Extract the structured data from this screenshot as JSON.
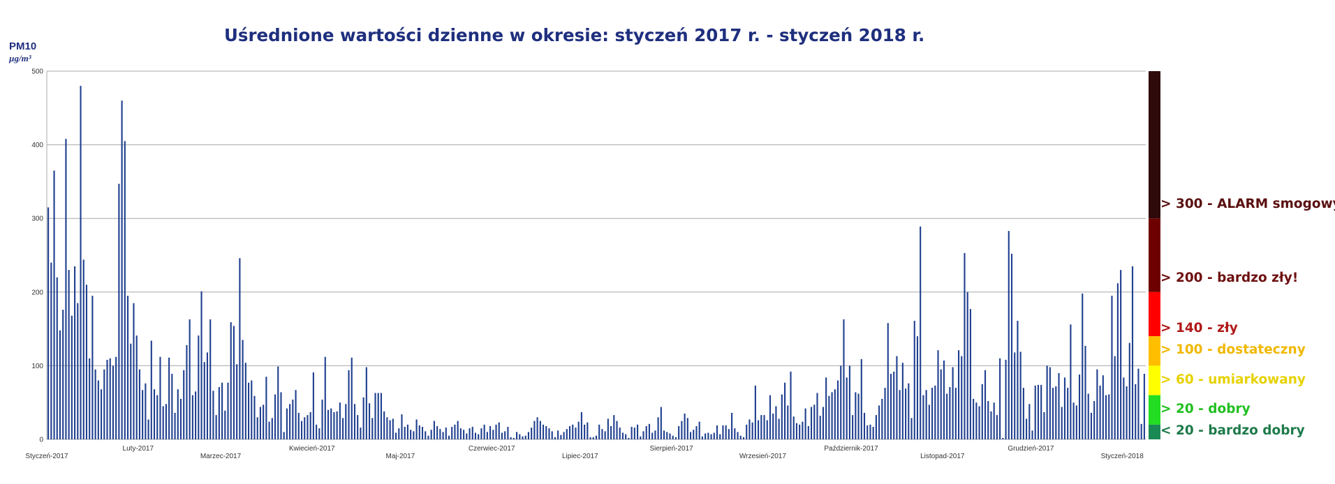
{
  "chart_data": {
    "type": "bar",
    "title": "Uśrednione wartości dzienne w okresie: styczeń 2017 r. - styczeń 2018 r.",
    "ylabel": "PM10",
    "yunit": "µg/m³",
    "ylim": [
      0,
      500
    ],
    "yticks": [
      "0",
      "100",
      "200",
      "300",
      "400",
      "500"
    ],
    "grid": "horizontal",
    "bar_color": "#1f3f8f",
    "start_date": "2017-01-01",
    "month_labels": [
      "Styczeń-2017",
      "Luty-2017",
      "Marzec-2017",
      "Kwiecień-2017",
      "Maj-2017",
      "Czerwiec-2017",
      "Lipiec-2017",
      "Sierpień-2017",
      "Wrzesień-2017",
      "Październik-2017",
      "Listopad-2017",
      "Grudzień-2017",
      "Styczeń-2018"
    ],
    "month_label_rows": [
      1,
      0,
      1,
      0,
      1,
      0,
      1,
      0,
      1,
      0,
      1,
      0,
      1
    ],
    "values": [
      315,
      240,
      365,
      220,
      148,
      176,
      408,
      230,
      168,
      235,
      185,
      480,
      244,
      210,
      110,
      195,
      95,
      80,
      68,
      95,
      108,
      110,
      100,
      112,
      347,
      460,
      405,
      195,
      130,
      185,
      141,
      95,
      67,
      76,
      27,
      134,
      68,
      60,
      112,
      45,
      48,
      111,
      89,
      36,
      68,
      55,
      94,
      128,
      163,
      60,
      65,
      141,
      201,
      105,
      118,
      163,
      66,
      33,
      71,
      77,
      39,
      77,
      159,
      154,
      102,
      246,
      135,
      104,
      77,
      80,
      59,
      30,
      44,
      47,
      85,
      24,
      29,
      61,
      99,
      64,
      10,
      42,
      48,
      54,
      67,
      36,
      25,
      30,
      33,
      37,
      91,
      20,
      15,
      54,
      112,
      40,
      42,
      37,
      38,
      50,
      29,
      48,
      94,
      111,
      48,
      33,
      16,
      57,
      98,
      49,
      29,
      63,
      63,
      63,
      38,
      30,
      26,
      28,
      9,
      15,
      34,
      17,
      20,
      13,
      11,
      27,
      19,
      17,
      11,
      5,
      13,
      25,
      18,
      14,
      10,
      16,
      5,
      17,
      20,
      25,
      15,
      13,
      8,
      15,
      17,
      9,
      7,
      15,
      20,
      10,
      18,
      13,
      20,
      23,
      9,
      11,
      17,
      3,
      2,
      10,
      7,
      4,
      5,
      10,
      16,
      25,
      30,
      25,
      20,
      18,
      15,
      11,
      3,
      12,
      6,
      10,
      14,
      18,
      20,
      16,
      24,
      37,
      20,
      23,
      3,
      3,
      5,
      20,
      14,
      11,
      28,
      18,
      33,
      25,
      16,
      9,
      7,
      2,
      17,
      16,
      20,
      4,
      11,
      18,
      21,
      9,
      12,
      30,
      44,
      12,
      10,
      8,
      5,
      3,
      18,
      25,
      35,
      29,
      10,
      13,
      18,
      24,
      4,
      8,
      9,
      7,
      9,
      19,
      7,
      19,
      19,
      14,
      36,
      15,
      10,
      5,
      3,
      20,
      27,
      23,
      73,
      26,
      33,
      33,
      26,
      60,
      35,
      45,
      28,
      61,
      77,
      46,
      92,
      31,
      22,
      20,
      24,
      42,
      18,
      44,
      47,
      63,
      32,
      44,
      84,
      59,
      64,
      68,
      80,
      100,
      163,
      84,
      100,
      33,
      64,
      62,
      109,
      36,
      19,
      20,
      17,
      33,
      46,
      55,
      70,
      158,
      89,
      92,
      113,
      67,
      104,
      69,
      76,
      29,
      161,
      140,
      289,
      60,
      67,
      47,
      70,
      73,
      121,
      95,
      107,
      62,
      71,
      98,
      70,
      121,
      113,
      253,
      200,
      177,
      55,
      50,
      45,
      75,
      94,
      52,
      38,
      50,
      33,
      110,
      2,
      108,
      283,
      252,
      118,
      161,
      119,
      70,
      28,
      48,
      12,
      73,
      74,
      74,
      37,
      100,
      98,
      70,
      72,
      90,
      44,
      84,
      70,
      156,
      50,
      46,
      88,
      198,
      127,
      62,
      36,
      52,
      95,
      73,
      87,
      60,
      61,
      195,
      113,
      212,
      230,
      84,
      72,
      131,
      235,
      75,
      96,
      21,
      89
    ]
  },
  "scale": [
    {
      "label": "> 300 - ALARM smogowy!",
      "color": "#2e0a0a",
      "text_color": "#5a1010",
      "from": 300,
      "to": 500
    },
    {
      "label": "> 200 - bardzo zły!",
      "color": "#6e0000",
      "text_color": "#6e1010",
      "from": 200,
      "to": 300
    },
    {
      "label": "> 140 - zły",
      "color": "#ff0000",
      "text_color": "#b01818",
      "from": 140,
      "to": 200
    },
    {
      "label": "> 100 - dostateczny",
      "color": "#ffbf00",
      "text_color": "#f0b800",
      "from": 100,
      "to": 140
    },
    {
      "label": "> 60 - umiarkowany",
      "color": "#ffff00",
      "text_color": "#e6d200",
      "from": 60,
      "to": 100
    },
    {
      "label": "> 20 - dobry",
      "color": "#22dd22",
      "text_color": "#22c022",
      "from": 20,
      "to": 60
    },
    {
      "label": "< 20 - bardzo dobry",
      "color": "#1a8a55",
      "text_color": "#1e7a4a",
      "from": 0,
      "to": 20
    }
  ]
}
